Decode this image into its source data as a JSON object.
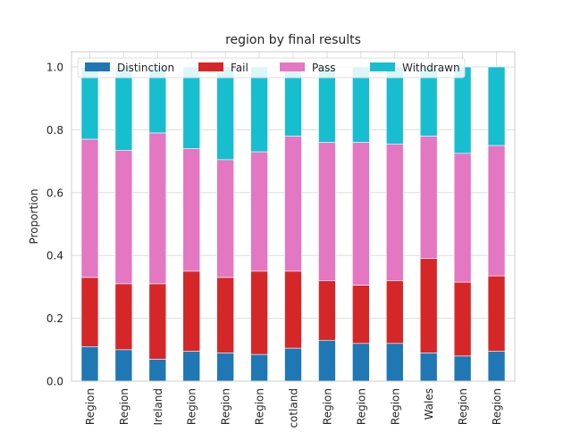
{
  "chart_data": {
    "type": "bar",
    "stacked": true,
    "title": "region by final results",
    "xlabel": "",
    "ylabel": "Proportion",
    "ylim": [
      0,
      1.0
    ],
    "yticks": [
      "0.0",
      "0.2",
      "0.4",
      "0.6",
      "0.8",
      "1.0"
    ],
    "grid": true,
    "legend_position": "top",
    "categories": [
      "Region",
      "Region",
      "Ireland",
      "Region",
      "Region",
      "Region",
      "Scotland",
      "Region",
      "Region",
      "Region",
      "Wales",
      "Region",
      "Region"
    ],
    "series": [
      {
        "name": "Distinction",
        "color": "#1f77b4",
        "values": [
          0.11,
          0.1,
          0.07,
          0.095,
          0.09,
          0.085,
          0.105,
          0.13,
          0.12,
          0.12,
          0.09,
          0.08,
          0.095
        ]
      },
      {
        "name": "Fail",
        "color": "#d62728",
        "values": [
          0.22,
          0.21,
          0.24,
          0.255,
          0.24,
          0.265,
          0.245,
          0.19,
          0.185,
          0.2,
          0.3,
          0.235,
          0.24
        ]
      },
      {
        "name": "Pass",
        "color": "#e377c2",
        "values": [
          0.44,
          0.425,
          0.48,
          0.39,
          0.375,
          0.38,
          0.43,
          0.44,
          0.455,
          0.435,
          0.39,
          0.41,
          0.415
        ]
      },
      {
        "name": "Withdrawn",
        "color": "#17becf",
        "values": [
          0.23,
          0.265,
          0.21,
          0.26,
          0.295,
          0.27,
          0.22,
          0.24,
          0.24,
          0.245,
          0.22,
          0.275,
          0.25
        ]
      }
    ]
  }
}
